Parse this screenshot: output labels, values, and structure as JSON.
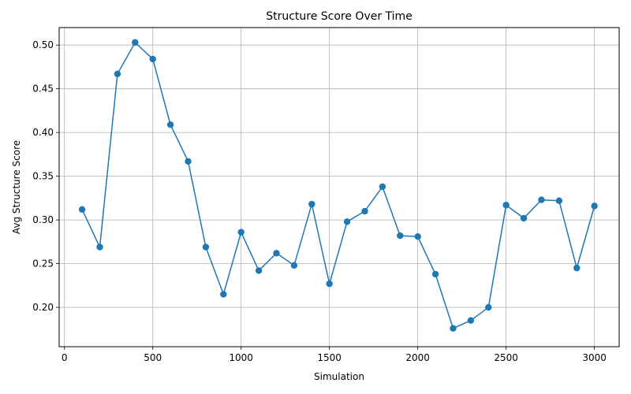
{
  "chart_data": {
    "type": "line",
    "title": "Structure Score Over Time",
    "xlabel": "Simulation",
    "ylabel": "Avg Structure Score",
    "xlim": [
      -30,
      3140
    ],
    "ylim": [
      0.155,
      0.52
    ],
    "xticks": [
      0,
      500,
      1000,
      1500,
      2000,
      2500,
      3000
    ],
    "yticks": [
      0.2,
      0.25,
      0.3,
      0.35,
      0.4,
      0.45,
      0.5
    ],
    "ytick_labels": [
      "0.20",
      "0.25",
      "0.30",
      "0.35",
      "0.40",
      "0.45",
      "0.50"
    ],
    "grid": true,
    "legend": "none",
    "color": "#1f77b4",
    "x": [
      100,
      200,
      300,
      400,
      500,
      600,
      700,
      800,
      900,
      1000,
      1100,
      1200,
      1300,
      1400,
      1500,
      1600,
      1700,
      1800,
      1900,
      2000,
      2100,
      2200,
      2300,
      2400,
      2500,
      2600,
      2700,
      2800,
      2900,
      3000
    ],
    "series": [
      {
        "values": [
          0.312,
          0.269,
          0.467,
          0.503,
          0.484,
          0.409,
          0.367,
          0.269,
          0.215,
          0.286,
          0.242,
          0.262,
          0.248,
          0.318,
          0.227,
          0.298,
          0.31,
          0.338,
          0.282,
          0.281,
          0.238,
          0.176,
          0.185,
          0.2,
          0.317,
          0.302,
          0.323,
          0.322,
          0.245,
          0.316
        ]
      }
    ]
  }
}
